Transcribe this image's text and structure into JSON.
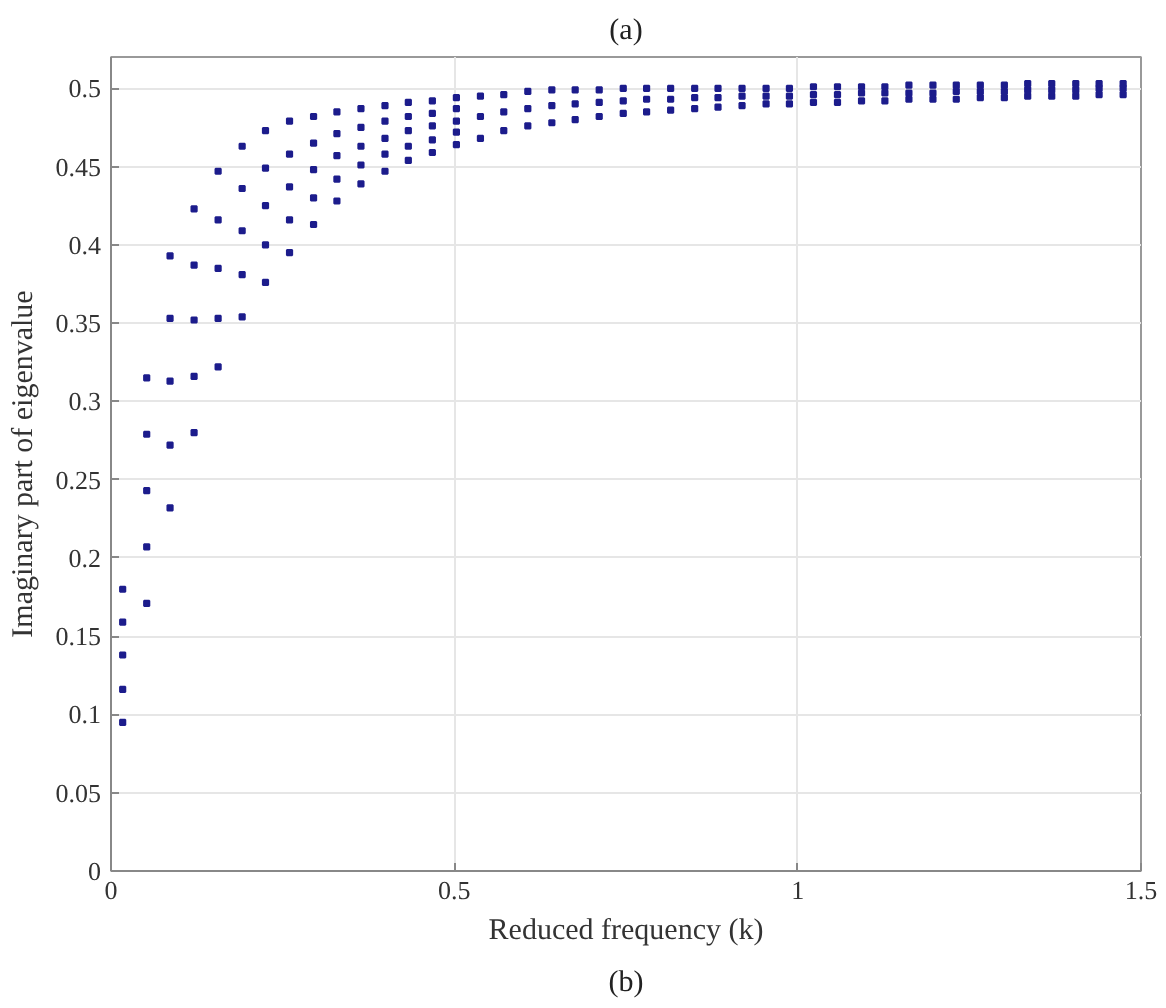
{
  "chart_data": {
    "type": "scatter",
    "xlabel": "Reduced frequency (k)",
    "ylabel": "Imaginary part of eigenvalue",
    "annotations": [
      "(a)",
      "(b)"
    ],
    "xlim": [
      0,
      1.5
    ],
    "xticks": [
      0,
      0.5,
      1,
      1.5
    ],
    "ylim": [
      0,
      0.52
    ],
    "yticks": [
      0,
      0.05,
      0.1,
      0.15,
      0.2,
      0.25,
      0.3,
      0.35,
      0.4,
      0.45,
      0.5
    ],
    "grid": true,
    "marker": "square",
    "series": [
      {
        "color": "#1c1c8c",
        "x": [
          0.017,
          0.017,
          0.017,
          0.017,
          0.017,
          0.052,
          0.052,
          0.052,
          0.052,
          0.052,
          0.086,
          0.086,
          0.086,
          0.086,
          0.086,
          0.121,
          0.121,
          0.121,
          0.121,
          0.121,
          0.156,
          0.156,
          0.156,
          0.156,
          0.156,
          0.191,
          0.191,
          0.191,
          0.191,
          0.191,
          0.225,
          0.225,
          0.225,
          0.225,
          0.225,
          0.26,
          0.26,
          0.26,
          0.26,
          0.26,
          0.295,
          0.295,
          0.295,
          0.295,
          0.295,
          0.329,
          0.329,
          0.329,
          0.329,
          0.329,
          0.364,
          0.364,
          0.364,
          0.364,
          0.364,
          0.399,
          0.399,
          0.399,
          0.399,
          0.399,
          0.433,
          0.433,
          0.433,
          0.433,
          0.433,
          0.468,
          0.468,
          0.468,
          0.468,
          0.468,
          0.503,
          0.503,
          0.503,
          0.503,
          0.503,
          0.538,
          0.538,
          0.538,
          0.572,
          0.572,
          0.572,
          0.607,
          0.607,
          0.607,
          0.642,
          0.642,
          0.642,
          0.676,
          0.676,
          0.676,
          0.711,
          0.711,
          0.711,
          0.746,
          0.746,
          0.746,
          0.78,
          0.78,
          0.78,
          0.815,
          0.815,
          0.815,
          0.85,
          0.85,
          0.85,
          0.884,
          0.884,
          0.884,
          0.919,
          0.919,
          0.919,
          0.954,
          0.954,
          0.954,
          0.988,
          0.988,
          0.988,
          1.023,
          1.023,
          1.023,
          1.058,
          1.058,
          1.058,
          1.093,
          1.093,
          1.093,
          1.127,
          1.127,
          1.127,
          1.162,
          1.162,
          1.162,
          1.197,
          1.197,
          1.197,
          1.231,
          1.231,
          1.231,
          1.266,
          1.266,
          1.266,
          1.301,
          1.301,
          1.301,
          1.335,
          1.335,
          1.335,
          1.37,
          1.37,
          1.37,
          1.405,
          1.405,
          1.405,
          1.439,
          1.439,
          1.439,
          1.474,
          1.474,
          1.474
        ],
        "values": [
          0.095,
          0.116,
          0.138,
          0.159,
          0.18,
          0.171,
          0.207,
          0.243,
          0.279,
          0.315,
          0.232,
          0.272,
          0.313,
          0.353,
          0.393,
          0.28,
          0.316,
          0.352,
          0.387,
          0.423,
          0.322,
          0.353,
          0.385,
          0.416,
          0.447,
          0.354,
          0.381,
          0.409,
          0.436,
          0.463,
          0.376,
          0.4,
          0.425,
          0.449,
          0.473,
          0.395,
          0.416,
          0.437,
          0.458,
          0.479,
          0.413,
          0.43,
          0.448,
          0.465,
          0.482,
          0.428,
          0.442,
          0.457,
          0.471,
          0.485,
          0.439,
          0.451,
          0.463,
          0.475,
          0.487,
          0.447,
          0.458,
          0.468,
          0.479,
          0.489,
          0.454,
          0.463,
          0.473,
          0.482,
          0.491,
          0.459,
          0.467,
          0.476,
          0.484,
          0.492,
          0.464,
          0.472,
          0.479,
          0.487,
          0.494,
          0.468,
          0.482,
          0.495,
          0.473,
          0.485,
          0.496,
          0.476,
          0.487,
          0.498,
          0.478,
          0.489,
          0.499,
          0.48,
          0.49,
          0.499,
          0.482,
          0.491,
          0.499,
          0.484,
          0.492,
          0.5,
          0.485,
          0.493,
          0.5,
          0.486,
          0.493,
          0.5,
          0.487,
          0.494,
          0.5,
          0.488,
          0.494,
          0.5,
          0.489,
          0.495,
          0.5,
          0.49,
          0.495,
          0.5,
          0.49,
          0.495,
          0.5,
          0.491,
          0.496,
          0.501,
          0.491,
          0.496,
          0.501,
          0.492,
          0.497,
          0.501,
          0.492,
          0.497,
          0.501,
          0.493,
          0.497,
          0.502,
          0.493,
          0.497,
          0.502,
          0.493,
          0.498,
          0.502,
          0.494,
          0.498,
          0.502,
          0.494,
          0.498,
          0.502,
          0.495,
          0.499,
          0.503,
          0.495,
          0.499,
          0.503,
          0.495,
          0.499,
          0.503,
          0.496,
          0.5,
          0.503,
          0.496,
          0.5,
          0.503
        ]
      }
    ]
  }
}
